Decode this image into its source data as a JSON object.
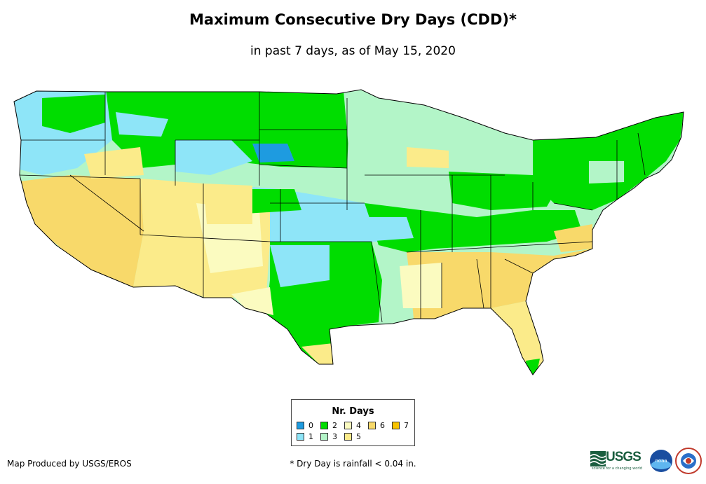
{
  "title": "Maximum Consecutive Dry Days (CDD)*",
  "subtitle": "in past 7 days, as of May 15, 2020",
  "legend": {
    "title": "Nr. Days",
    "items": [
      {
        "label": "0",
        "color": "#1e9be0"
      },
      {
        "label": "1",
        "color": "#8ee5f8"
      },
      {
        "label": "2",
        "color": "#00dd00"
      },
      {
        "label": "3",
        "color": "#b3f5c8"
      },
      {
        "label": "4",
        "color": "#fbfbc0"
      },
      {
        "label": "5",
        "color": "#fbeb8a"
      },
      {
        "label": "6",
        "color": "#f8d96a"
      },
      {
        "label": "7",
        "color": "#f7c300"
      }
    ]
  },
  "footer": {
    "credit": "Map Produced by USGS/EROS",
    "note": "* Dry Day is rainfall < 0.04 in."
  },
  "logos": {
    "usgs_label": "USGS",
    "usgs_tagline": "science for a changing world",
    "noaa_label": "noaa"
  },
  "map_regions": [
    {
      "name": "pacific-northwest",
      "class": "1"
    },
    {
      "name": "california-great-basin",
      "class": "6"
    },
    {
      "name": "southwest",
      "class": "5"
    },
    {
      "name": "northern-plains",
      "class": "2"
    },
    {
      "name": "central-plains",
      "class": "1"
    },
    {
      "name": "upper-midwest",
      "class": "3"
    },
    {
      "name": "texas-oklahoma",
      "class": "2"
    },
    {
      "name": "southeast",
      "class": "6"
    },
    {
      "name": "ohio-valley",
      "class": "2"
    },
    {
      "name": "northeast",
      "class": "2"
    },
    {
      "name": "florida",
      "class": "5"
    }
  ]
}
